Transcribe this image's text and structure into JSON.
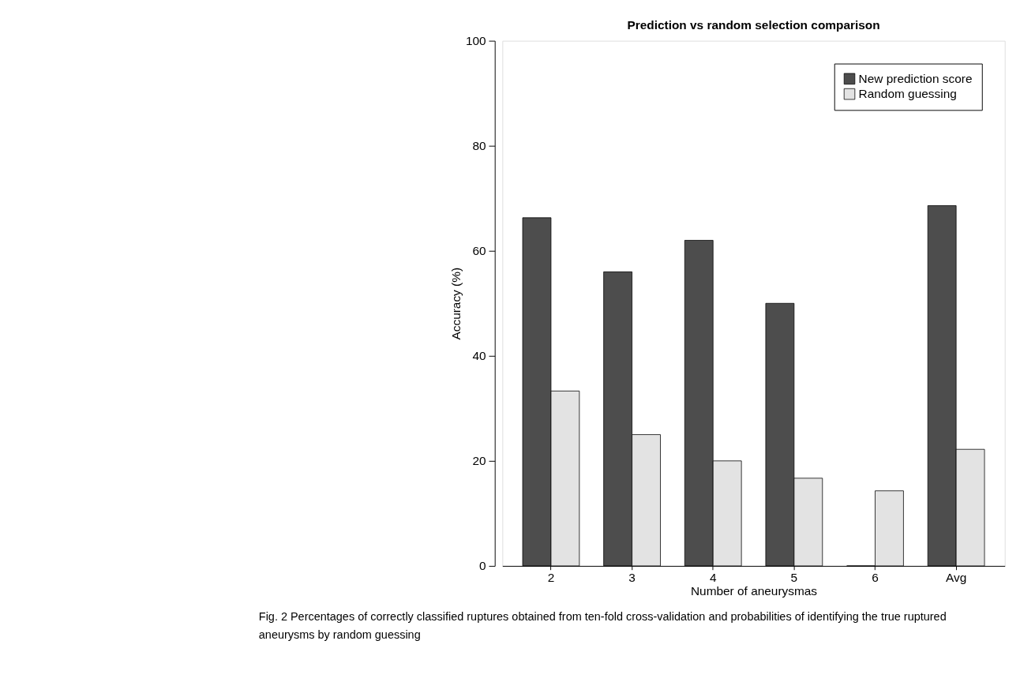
{
  "chart_data": {
    "type": "bar",
    "title": "Prediction vs random selection comparison",
    "xlabel": "Number of aneurysmas",
    "ylabel": "Accuracy (%)",
    "categories": [
      "2",
      "3",
      "4",
      "5",
      "6",
      "Avg"
    ],
    "series": [
      {
        "name": "New prediction score",
        "color": "#4d4d4d",
        "values": [
          66.3,
          56,
          62,
          50,
          0,
          68.6
        ]
      },
      {
        "name": "Random guessing",
        "color": "#e3e3e3",
        "values": [
          33.3,
          25,
          20,
          16.7,
          14.3,
          22.2
        ]
      }
    ],
    "ylim": [
      0,
      100
    ],
    "yticks": [
      0,
      20,
      40,
      60,
      80,
      100
    ],
    "grid": false,
    "legend": "top right",
    "annotations": [
      "Fig. 2 Percentages of correctly classified ruptures obtained from ten-fold cross-validation and probabilities of identifying the true ruptured aneurysms by random guessing"
    ]
  }
}
